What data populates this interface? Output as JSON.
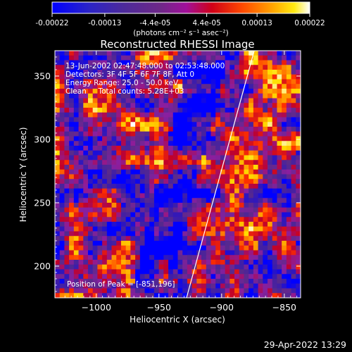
{
  "chart_data": {
    "type": "heatmap",
    "title": "Reconstructed RHESSI Image",
    "xlabel": "Heliocentric X (arcsec)",
    "ylabel": "Heliocentric Y (arcsec)",
    "xlim": [
      -1033,
      -837
    ],
    "ylim": [
      175,
      370
    ],
    "x_ticks": [
      -1000,
      -950,
      -900,
      -850
    ],
    "x_tick_labels": [
      "−1000",
      "−950",
      "−900",
      "−850"
    ],
    "y_ticks": [
      200,
      250,
      300,
      350
    ],
    "y_tick_labels": [
      "200",
      "250",
      "300",
      "350"
    ],
    "colorbar": {
      "range": [
        -0.00022,
        0.00022
      ],
      "tick_values": [
        -0.00022,
        -0.00013,
        -4.4e-05,
        4.4e-05,
        0.00013,
        0.00022
      ],
      "tick_labels": [
        "-0.00022",
        "-0.00013",
        "-4.4e-05",
        "4.4e-05",
        "0.00013",
        "0.00022"
      ],
      "units_label": "(photons cm⁻² s⁻¹ asec⁻²)",
      "colormap": [
        "#0000ff",
        "#3a1cae",
        "#5a2a8a",
        "#8a1fa0",
        "#c0002a",
        "#ff3000",
        "#ff9a00",
        "#ffe000",
        "#ffffff"
      ]
    },
    "info_lines": [
      "13-Jun-2002 02:47:48.000 to 02:53:48.000",
      "Detectors: 3F 4F 5F 6F 7F 8F, Att 0",
      "Energy Range: 25.0 - 50.0 keV",
      "Clean     Total counts: 5.28E+03"
    ],
    "peak_label": "Position of Peak = [-851,196]",
    "peak_position": [
      -851,
      196
    ],
    "limb_line": [
      [
        -928,
        175
      ],
      [
        -874,
        370
      ]
    ],
    "grid": false
  },
  "footer": {
    "date": "29-Apr-2022 13:29"
  }
}
